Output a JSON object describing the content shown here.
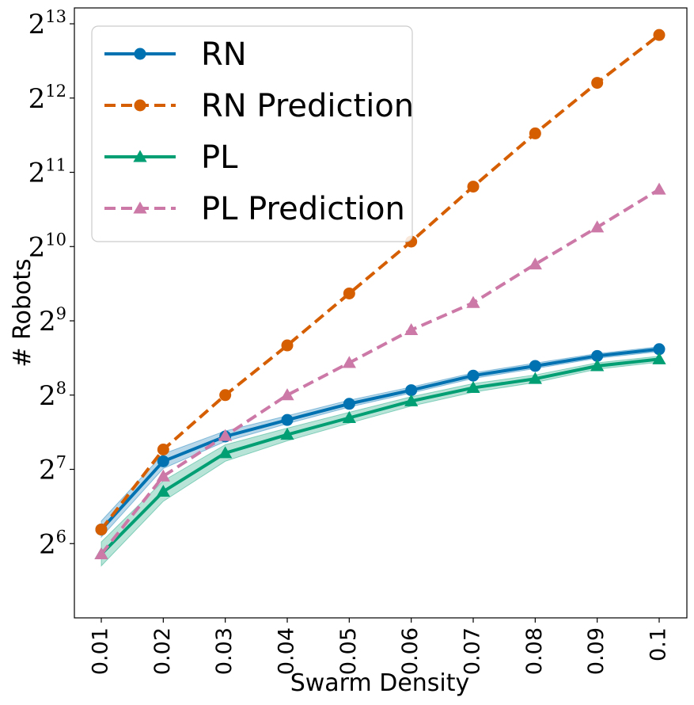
{
  "chart_data": {
    "type": "line",
    "xlabel": "Swarm Density",
    "ylabel": "# Robots",
    "y_scale": "log2",
    "x": [
      "0.01",
      "0.02",
      "0.03",
      "0.04",
      "0.05",
      "0.06",
      "0.07",
      "0.08",
      "0.09",
      "0.1"
    ],
    "ylim": [
      32,
      9500
    ],
    "y_ticks": [
      {
        "base": "2",
        "exp": "6",
        "value": 64
      },
      {
        "base": "2",
        "exp": "7",
        "value": 128
      },
      {
        "base": "2",
        "exp": "8",
        "value": 256
      },
      {
        "base": "2",
        "exp": "9",
        "value": 512
      },
      {
        "base": "2",
        "exp": "10",
        "value": 1024
      },
      {
        "base": "2",
        "exp": "11",
        "value": 2048
      },
      {
        "base": "2",
        "exp": "12",
        "value": 4096
      },
      {
        "base": "2",
        "exp": "13",
        "value": 8192
      }
    ],
    "legend_position": "top-left",
    "series": [
      {
        "name": "RN",
        "color": "#0072b2",
        "style": "solid",
        "marker": "circle",
        "values": [
          73,
          138,
          174,
          203,
          236,
          268,
          307,
          336,
          369,
          393
        ],
        "band_low": [
          68,
          129,
          166,
          196,
          229,
          261,
          299,
          328,
          361,
          384
        ],
        "band_high": [
          79,
          148,
          183,
          211,
          244,
          276,
          315,
          345,
          377,
          402
        ]
      },
      {
        "name": "RN Prediction",
        "color": "#d55e00",
        "style": "dashed",
        "marker": "circle",
        "values": [
          73,
          154,
          256,
          407,
          661,
          1073,
          1792,
          2945,
          4720,
          7380
        ]
      },
      {
        "name": "PL",
        "color": "#009e73",
        "style": "solid",
        "marker": "triangle",
        "values": [
          58,
          104,
          149,
          177,
          207,
          242,
          274,
          298,
          336,
          358
        ],
        "band_low": [
          52,
          95,
          138,
          167,
          197,
          231,
          263,
          288,
          326,
          348
        ],
        "band_high": [
          65,
          115,
          161,
          188,
          218,
          252,
          285,
          309,
          346,
          368
        ]
      },
      {
        "name": "PL Prediction",
        "color": "#cc79a7",
        "style": "dashed",
        "marker": "triangle",
        "values": [
          58,
          120,
          175,
          256,
          346,
          470,
          606,
          868,
          1226,
          1745
        ]
      }
    ]
  }
}
